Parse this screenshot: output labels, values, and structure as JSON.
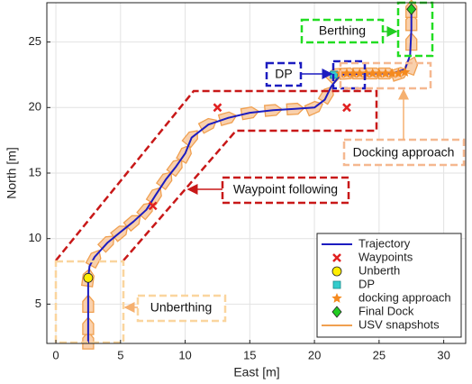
{
  "chart_data": {
    "type": "line",
    "xlabel": "East [m]",
    "ylabel": "North [m]",
    "xlim": [
      -0.7,
      31.7
    ],
    "ylim": [
      2,
      28
    ],
    "xticks": [
      0,
      5,
      10,
      15,
      20,
      25,
      30
    ],
    "yticks": [
      5,
      10,
      15,
      20,
      25
    ],
    "grid": true,
    "legend": "lower right",
    "annotations": [
      "Berthing",
      "DP",
      "Docking approach",
      "Waypoint following",
      "Unberthing"
    ],
    "series": [
      {
        "name": "Trajectory",
        "color": "#1c1cc0",
        "marker": "line",
        "x": [
          2.5,
          2.5,
          2.5,
          2.6,
          3.0,
          4.0,
          5.0,
          6.0,
          7.0,
          7.7,
          8.5,
          9.3,
          10.0,
          10.5,
          11.8,
          13.3,
          15.0,
          16.8,
          18.5,
          20.0,
          20.8,
          21.3,
          22.0,
          24.0,
          26.0,
          27.0,
          27.4,
          27.5,
          27.5
        ],
        "y": [
          2.0,
          5.0,
          7.0,
          7.9,
          8.6,
          9.7,
          10.5,
          11.3,
          12.2,
          13.3,
          14.5,
          15.5,
          16.5,
          17.7,
          18.7,
          19.2,
          19.6,
          19.8,
          19.9,
          20.0,
          20.6,
          21.6,
          22.5,
          22.6,
          22.6,
          22.9,
          24.0,
          26.0,
          27.5
        ]
      },
      {
        "name": "Waypoints",
        "color": "#e02020",
        "marker": "x",
        "x": [
          7.5,
          12.5,
          22.5
        ],
        "y": [
          12.5,
          20.0,
          20.0
        ]
      },
      {
        "name": "Unberth",
        "color": "#ffee00",
        "marker": "circle",
        "x": [
          2.5
        ],
        "y": [
          7.0
        ]
      },
      {
        "name": "DP",
        "color": "#33cccc",
        "marker": "square",
        "x": [
          21.5
        ],
        "y": [
          22.5
        ]
      },
      {
        "name": "docking approach",
        "color": "#f58a1f",
        "marker": "star",
        "x": [
          22.0,
          22.5,
          23.0,
          23.5,
          24.0,
          24.5,
          25.0,
          25.5,
          26.0,
          26.5,
          27.0
        ],
        "y": [
          22.6,
          22.6,
          22.6,
          22.6,
          22.6,
          22.6,
          22.6,
          22.6,
          22.6,
          22.6,
          22.7
        ]
      },
      {
        "name": "Final Dock",
        "color": "#22cc22",
        "marker": "diamond",
        "x": [
          27.5
        ],
        "y": [
          27.5
        ]
      },
      {
        "name": "USV snapshots",
        "color": "#f0a050",
        "marker": "boat",
        "x": [
          2.5,
          2.5,
          2.5,
          2.5,
          3.0,
          4.0,
          5.0,
          6.0,
          7.0,
          7.7,
          8.5,
          9.3,
          10.0,
          10.5,
          11.8,
          13.3,
          15.0,
          16.8,
          18.5,
          20.0,
          21.0,
          21.6,
          22.6,
          23.6,
          24.6,
          25.6,
          26.6,
          27.5,
          27.5,
          27.5,
          27.5
        ],
        "y": [
          2.2,
          3.3,
          5.0,
          7.0,
          8.5,
          9.7,
          10.5,
          11.3,
          12.2,
          13.3,
          14.5,
          15.5,
          16.5,
          17.7,
          18.7,
          19.2,
          19.6,
          19.8,
          19.9,
          20.0,
          21.0,
          22.5,
          22.6,
          22.6,
          22.6,
          22.6,
          22.6,
          23.2,
          25.0,
          26.5,
          27.5
        ]
      }
    ]
  }
}
